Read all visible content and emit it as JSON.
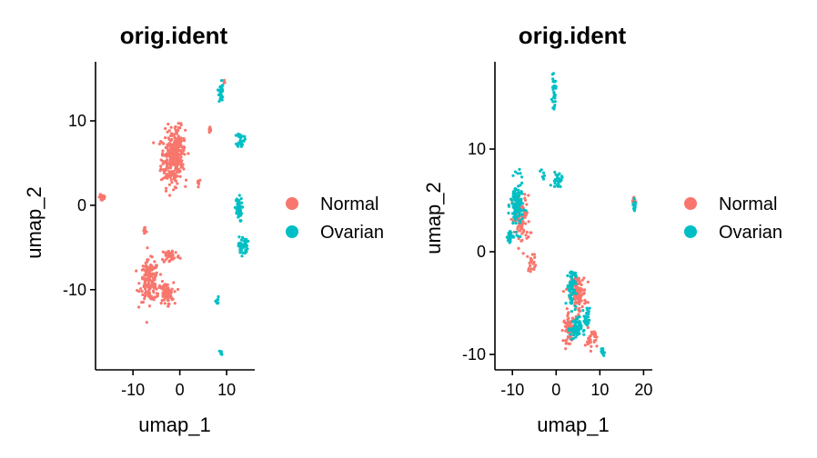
{
  "colors": {
    "Normal": "#F8766D",
    "Ovarian": "#00BFC4"
  },
  "chart_data": [
    {
      "type": "scatter",
      "title": "orig.ident",
      "xlabel": "umap_1",
      "ylabel": "umap_2",
      "xlim": [
        -18,
        16
      ],
      "ylim": [
        -19.5,
        17
      ],
      "xticks": [
        -10,
        0,
        10
      ],
      "yticks": [
        -10,
        0,
        10
      ],
      "legend": {
        "position": "right",
        "entries": [
          "Normal",
          "Ovarian"
        ]
      },
      "series": [
        {
          "name": "Normal",
          "clusters": [
            {
              "cx": -1.8,
              "cy": 5.5,
              "sx": 2.0,
              "sy": 3.0,
              "n": 220
            },
            {
              "cx": -0.5,
              "cy": 6.5,
              "sx": 1.5,
              "sy": 2.5,
              "n": 120
            },
            {
              "cx": -16.5,
              "cy": 1.0,
              "sx": 0.6,
              "sy": 0.6,
              "n": 25
            },
            {
              "cx": -6.5,
              "cy": -9.0,
              "sx": 1.8,
              "sy": 2.2,
              "n": 160
            },
            {
              "cx": -3.0,
              "cy": -10.5,
              "sx": 1.5,
              "sy": 1.2,
              "n": 80
            },
            {
              "cx": -7.5,
              "cy": -3.0,
              "sx": 0.4,
              "sy": 0.6,
              "n": 12
            },
            {
              "cx": -2.0,
              "cy": -6.0,
              "sx": 1.8,
              "sy": 0.8,
              "n": 40
            },
            {
              "cx": 4.0,
              "cy": 2.8,
              "sx": 0.4,
              "sy": 0.4,
              "n": 8
            },
            {
              "cx": 6.5,
              "cy": 9.0,
              "sx": 0.3,
              "sy": 0.4,
              "n": 6
            },
            {
              "cx": 9.5,
              "cy": 14.5,
              "sx": 0.3,
              "sy": 0.3,
              "n": 5
            }
          ]
        },
        {
          "name": "Ovarian",
          "clusters": [
            {
              "cx": 8.8,
              "cy": 13.5,
              "sx": 0.4,
              "sy": 1.3,
              "n": 30
            },
            {
              "cx": 13.0,
              "cy": 7.8,
              "sx": 0.7,
              "sy": 0.8,
              "n": 30
            },
            {
              "cx": 12.5,
              "cy": -0.5,
              "sx": 0.7,
              "sy": 1.3,
              "n": 55
            },
            {
              "cx": 13.5,
              "cy": -4.8,
              "sx": 0.9,
              "sy": 1.0,
              "n": 40
            },
            {
              "cx": 8.0,
              "cy": -11.5,
              "sx": 0.3,
              "sy": 0.6,
              "n": 10
            },
            {
              "cx": 8.8,
              "cy": -17.5,
              "sx": 0.3,
              "sy": 0.3,
              "n": 6
            }
          ]
        }
      ]
    },
    {
      "type": "scatter",
      "title": "orig.ident",
      "xlabel": "umap_1",
      "ylabel": "umap_2",
      "xlim": [
        -14,
        22
      ],
      "ylim": [
        -11.5,
        18.5
      ],
      "xticks": [
        -10,
        0,
        10,
        20
      ],
      "yticks": [
        -10,
        0,
        10
      ],
      "legend": {
        "position": "right",
        "entries": [
          "Normal",
          "Ovarian"
        ]
      },
      "series": [
        {
          "name": "Normal",
          "clusters": [
            {
              "cx": -8.0,
              "cy": 3.0,
              "sx": 1.8,
              "sy": 2.2,
              "n": 90
            },
            {
              "cx": -5.5,
              "cy": -1.0,
              "sx": 1.0,
              "sy": 0.8,
              "n": 20
            },
            {
              "cx": 5.0,
              "cy": -4.0,
              "sx": 1.6,
              "sy": 1.6,
              "n": 130
            },
            {
              "cx": 3.0,
              "cy": -7.5,
              "sx": 1.2,
              "sy": 1.2,
              "n": 80
            },
            {
              "cx": 8.0,
              "cy": -8.5,
              "sx": 1.2,
              "sy": 0.9,
              "n": 30
            },
            {
              "cx": 17.8,
              "cy": 5.0,
              "sx": 0.3,
              "sy": 0.4,
              "n": 12
            }
          ]
        },
        {
          "name": "Ovarian",
          "clusters": [
            {
              "cx": -9.0,
              "cy": 4.5,
              "sx": 1.3,
              "sy": 2.2,
              "n": 130
            },
            {
              "cx": -10.5,
              "cy": 1.5,
              "sx": 0.6,
              "sy": 0.8,
              "n": 25
            },
            {
              "cx": -0.5,
              "cy": 15.5,
              "sx": 0.4,
              "sy": 1.3,
              "n": 30
            },
            {
              "cx": 0.5,
              "cy": 7.0,
              "sx": 1.2,
              "sy": 0.8,
              "n": 25
            },
            {
              "cx": -3.0,
              "cy": 7.5,
              "sx": 0.4,
              "sy": 0.5,
              "n": 8
            },
            {
              "cx": 3.5,
              "cy": -3.5,
              "sx": 0.9,
              "sy": 1.8,
              "n": 70
            },
            {
              "cx": 4.5,
              "cy": -7.5,
              "sx": 1.2,
              "sy": 1.0,
              "n": 60
            },
            {
              "cx": 7.0,
              "cy": -6.5,
              "sx": 0.6,
              "sy": 0.9,
              "n": 25
            },
            {
              "cx": 10.5,
              "cy": -9.8,
              "sx": 0.5,
              "sy": 0.4,
              "n": 15
            },
            {
              "cx": 18.0,
              "cy": 4.6,
              "sx": 0.3,
              "sy": 0.5,
              "n": 20
            }
          ]
        }
      ]
    }
  ]
}
